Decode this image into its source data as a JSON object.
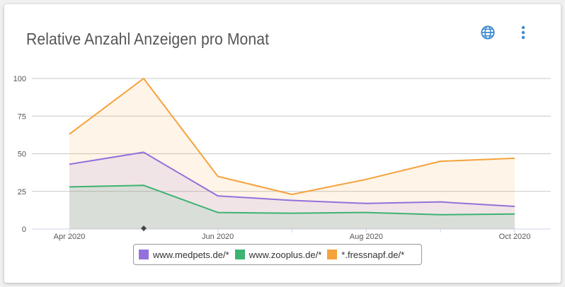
{
  "header": {
    "title": "Relative Anzahl Anzeigen pro Monat",
    "language_icon": "globe-icon",
    "menu_icon": "more-vert-icon",
    "accent": "#3d8ad0"
  },
  "chart_data": {
    "type": "area",
    "title": "Relative Anzahl Anzeigen pro Monat",
    "x": [
      "2020-04",
      "2020-05",
      "2020-06",
      "2020-07",
      "2020-08",
      "2020-09",
      "2020-10"
    ],
    "x_tick_labels": [
      "Apr 2020",
      "Jun 2020",
      "Aug 2020",
      "Oct 2020"
    ],
    "x_tick_positions": [
      "2020-04",
      "2020-06",
      "2020-08",
      "2020-10"
    ],
    "y_ticks": [
      0,
      25,
      50,
      75,
      100
    ],
    "ylim": [
      0,
      100
    ],
    "grid": true,
    "legend_position": "bottom",
    "series": [
      {
        "name": "www.medpets.de/*",
        "color": "#9370db",
        "values": [
          43,
          51,
          22,
          19,
          17,
          18,
          15
        ]
      },
      {
        "name": "www.zooplus.de/*",
        "color": "#3cb371",
        "values": [
          28,
          29,
          11,
          10.5,
          11,
          9.5,
          10
        ]
      },
      {
        "name": "*.fressnapf.de/*",
        "color": "#f5a23c",
        "values": [
          63,
          100,
          35,
          23,
          33,
          45,
          47
        ]
      }
    ]
  }
}
